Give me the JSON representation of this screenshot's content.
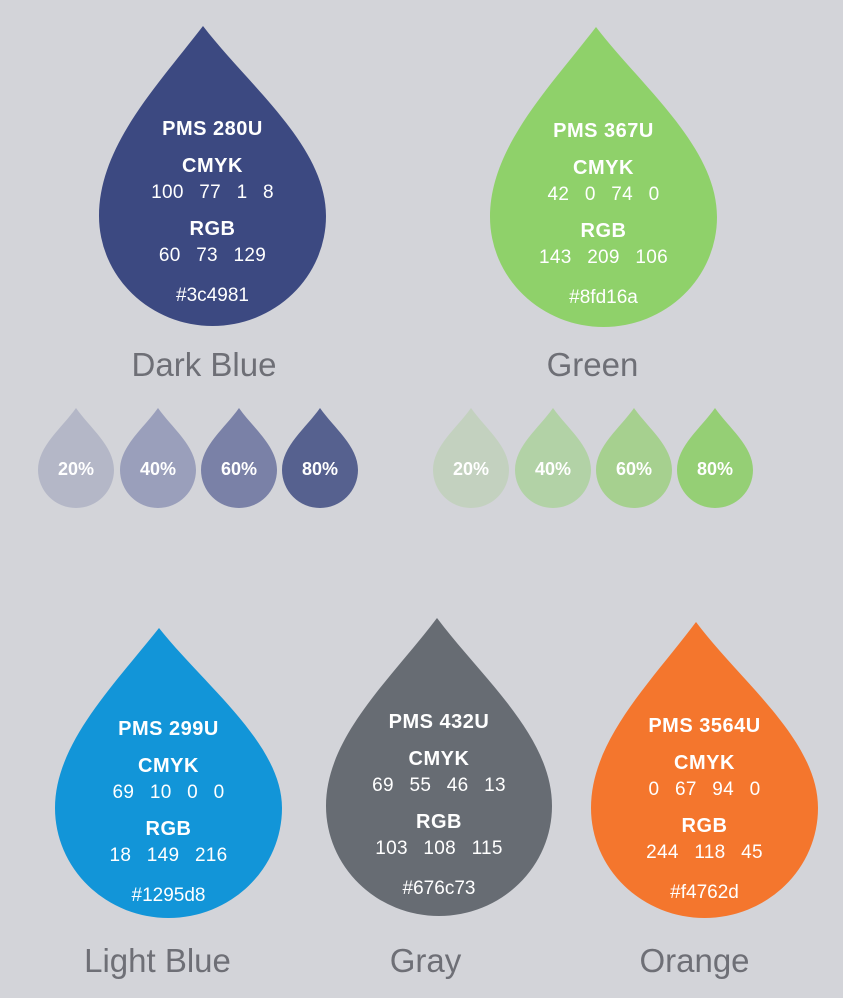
{
  "swatches": {
    "dark_blue": {
      "pms": "PMS 280U",
      "cmyk_label": "CMYK",
      "cmyk": "100 77 1 8",
      "rgb_label": "RGB",
      "rgb": "60 73 129",
      "hex": "#3c4981",
      "name": "Dark Blue",
      "color": "#3c4981"
    },
    "green": {
      "pms": "PMS 367U",
      "cmyk_label": "CMYK",
      "cmyk": "42 0 74 0",
      "rgb_label": "RGB",
      "rgb": "143 209 106",
      "hex": "#8fd16a",
      "name": "Green",
      "color": "#8fd16a"
    },
    "light_blue": {
      "pms": "PMS 299U",
      "cmyk_label": "CMYK",
      "cmyk": "69 10 0 0",
      "rgb_label": "RGB",
      "rgb": "18 149 216",
      "hex": "#1295d8",
      "name": "Light Blue",
      "color": "#1295d8"
    },
    "gray": {
      "pms": "PMS 432U",
      "cmyk_label": "CMYK",
      "cmyk": "69 55 46 13",
      "rgb_label": "RGB",
      "rgb": "103 108 115",
      "hex": "#676c73",
      "name": "Gray",
      "color": "#676c73"
    },
    "orange": {
      "pms": "PMS 3564U",
      "cmyk_label": "CMYK",
      "cmyk": "0 67 94 0",
      "rgb_label": "RGB",
      "rgb": "244 118 45",
      "hex": "#f4762d",
      "name": "Orange",
      "color": "#f4762d"
    }
  },
  "tints": {
    "dark_blue": [
      {
        "label": "20%",
        "color": "#b4b7c7"
      },
      {
        "label": "40%",
        "color": "#9a9fbb"
      },
      {
        "label": "60%",
        "color": "#7a81a7"
      },
      {
        "label": "80%",
        "color": "#56618f"
      }
    ],
    "green": [
      {
        "label": "20%",
        "color": "#c3d1bf"
      },
      {
        "label": "40%",
        "color": "#b2d2a6"
      },
      {
        "label": "60%",
        "color": "#a6d08f"
      },
      {
        "label": "80%",
        "color": "#95cf75"
      }
    ]
  }
}
